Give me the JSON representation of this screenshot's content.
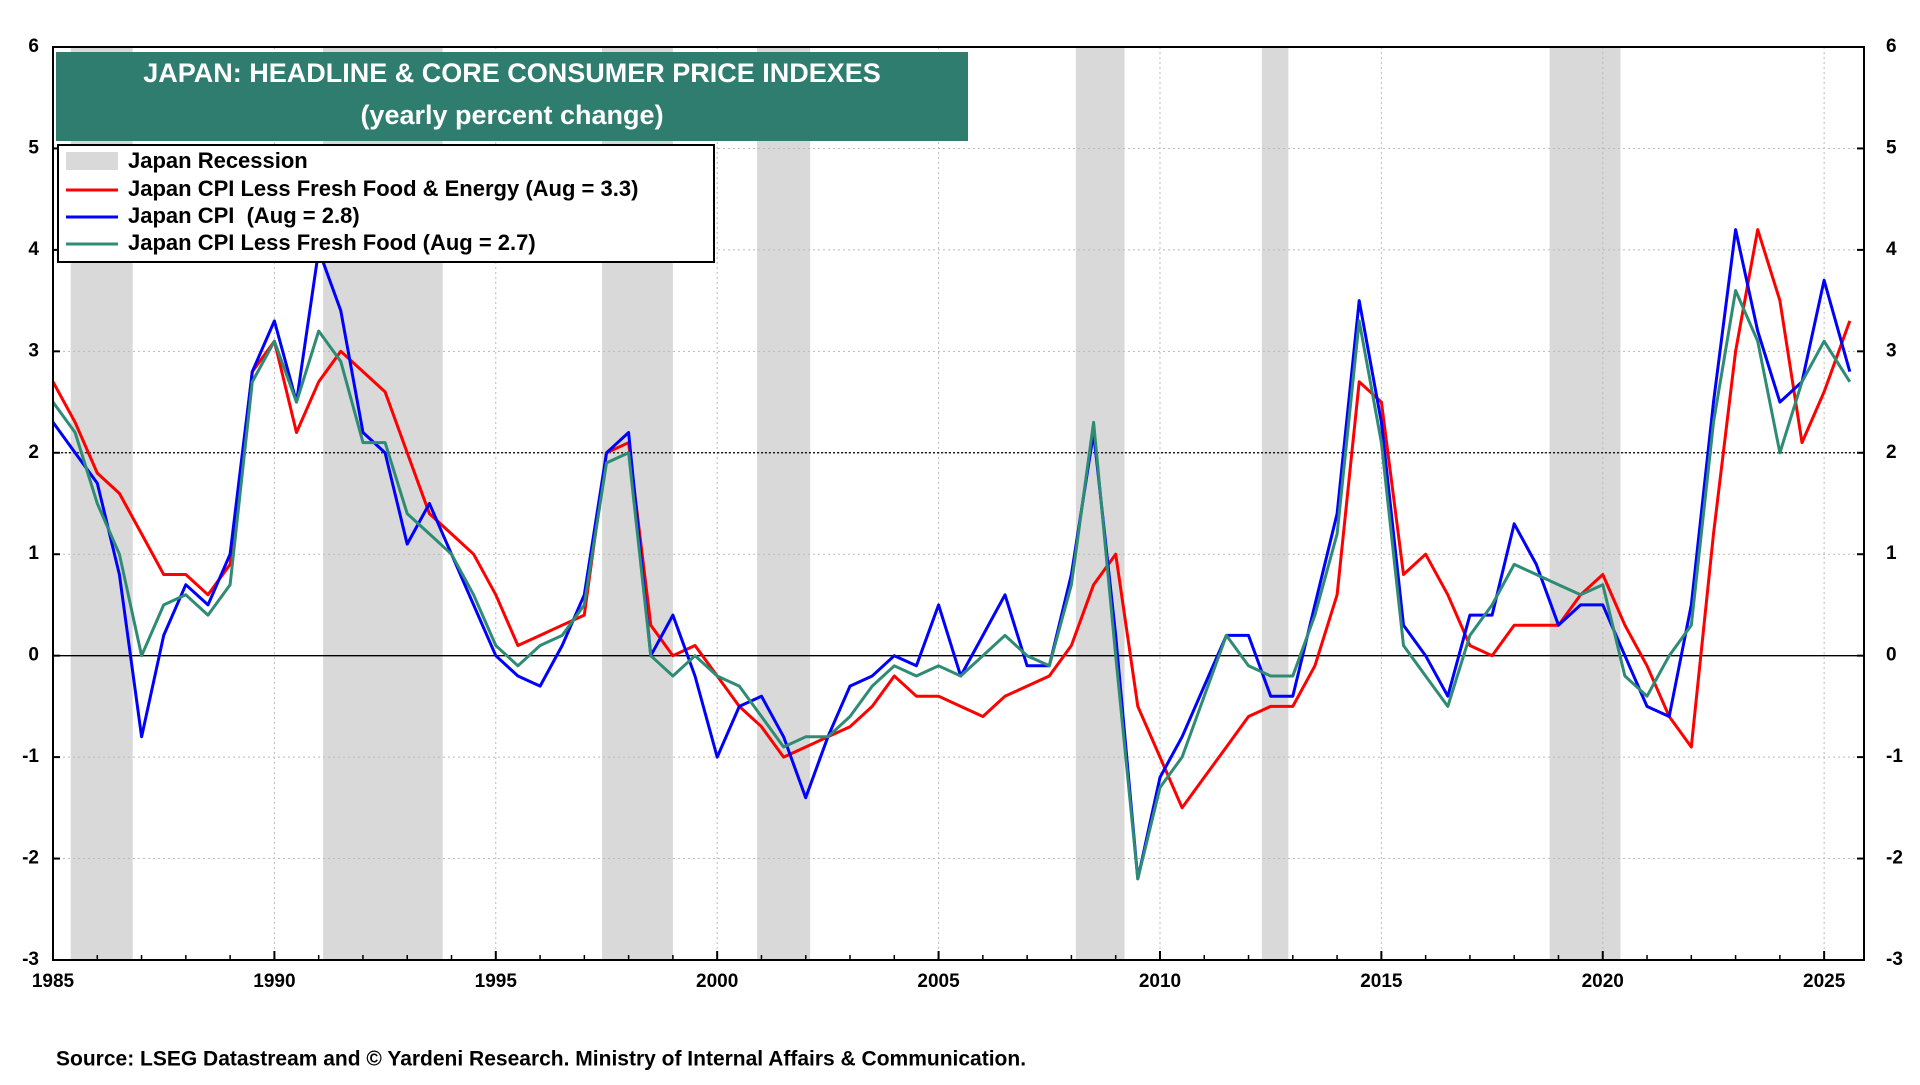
{
  "chart_data": {
    "type": "line",
    "title": "JAPAN: HEADLINE & CORE CONSUMER PRICE INDEXES",
    "subtitle": "(yearly percent change)",
    "source": "Source: LSEG Datastream and © Yardeni Research. Ministry of Internal Affairs & Communication.",
    "xlim": [
      1985,
      2025.9
    ],
    "xticks": [
      1985,
      1990,
      1995,
      2000,
      2005,
      2010,
      2015,
      2020,
      2025
    ],
    "ylim": [
      -3,
      6
    ],
    "yticks": [
      -3,
      -2,
      -1,
      0,
      1,
      2,
      3,
      4,
      5,
      6
    ],
    "y2lim": [
      -3,
      6
    ],
    "y2ticks": [
      -3,
      -2,
      -1,
      0,
      1,
      2,
      3,
      4,
      5,
      6
    ],
    "grid": true,
    "hlines": [
      0,
      2
    ],
    "recessions": {
      "name": "Japan Recession",
      "color": "#d9d9d9",
      "periods": [
        [
          1985.4,
          1986.8
        ],
        [
          1991.1,
          1993.8
        ],
        [
          1997.4,
          1999.0
        ],
        [
          2000.9,
          2002.1
        ],
        [
          2008.1,
          2009.2
        ],
        [
          2012.3,
          2012.9
        ],
        [
          2018.8,
          2020.4
        ]
      ]
    },
    "x": [
      1985.0,
      1985.5,
      1986.0,
      1986.5,
      1987.0,
      1987.5,
      1988.0,
      1988.5,
      1989.0,
      1989.5,
      1990.0,
      1990.5,
      1991.0,
      1991.5,
      1992.0,
      1992.5,
      1993.0,
      1993.5,
      1994.0,
      1994.5,
      1995.0,
      1995.5,
      1996.0,
      1996.5,
      1997.0,
      1997.5,
      1998.0,
      1998.5,
      1999.0,
      1999.5,
      2000.0,
      2000.5,
      2001.0,
      2001.5,
      2002.0,
      2002.5,
      2003.0,
      2003.5,
      2004.0,
      2004.5,
      2005.0,
      2005.5,
      2006.0,
      2006.5,
      2007.0,
      2007.5,
      2008.0,
      2008.5,
      2009.0,
      2009.5,
      2010.0,
      2010.5,
      2011.0,
      2011.5,
      2012.0,
      2012.5,
      2013.0,
      2013.5,
      2014.0,
      2014.5,
      2015.0,
      2015.5,
      2016.0,
      2016.5,
      2017.0,
      2017.5,
      2018.0,
      2018.5,
      2019.0,
      2019.5,
      2020.0,
      2020.5,
      2021.0,
      2021.5,
      2022.0,
      2022.5,
      2023.0,
      2023.5,
      2024.0,
      2024.5,
      2025.0,
      2025.58
    ],
    "series": [
      {
        "name": "Japan CPI Less Fresh Food & Energy (Aug = 3.3)",
        "color": "#ff0000",
        "values": [
          2.7,
          2.3,
          1.8,
          1.6,
          1.2,
          0.8,
          0.8,
          0.6,
          0.9,
          2.8,
          3.1,
          2.2,
          2.7,
          3.0,
          2.8,
          2.6,
          2.0,
          1.4,
          1.2,
          1.0,
          0.6,
          0.1,
          0.2,
          0.3,
          0.4,
          2.0,
          2.1,
          0.3,
          0.0,
          0.1,
          -0.2,
          -0.5,
          -0.7,
          -1.0,
          -0.9,
          -0.8,
          -0.7,
          -0.5,
          -0.2,
          -0.4,
          -0.4,
          -0.5,
          -0.6,
          -0.4,
          -0.3,
          -0.2,
          0.1,
          0.7,
          1.0,
          -0.5,
          -1.0,
          -1.5,
          -1.2,
          -0.9,
          -0.6,
          -0.5,
          -0.5,
          -0.1,
          0.6,
          2.7,
          2.5,
          0.8,
          1.0,
          0.6,
          0.1,
          0.0,
          0.3,
          0.3,
          0.3,
          0.6,
          0.8,
          0.3,
          -0.1,
          -0.6,
          -0.9,
          1.2,
          3.0,
          4.2,
          3.5,
          2.1,
          2.6,
          3.3
        ]
      },
      {
        "name": "Japan CPI  (Aug = 2.8)",
        "color": "#0000ff",
        "values": [
          2.3,
          2.0,
          1.7,
          0.8,
          -0.8,
          0.2,
          0.7,
          0.5,
          1.0,
          2.8,
          3.3,
          2.5,
          4.0,
          3.4,
          2.2,
          2.0,
          1.1,
          1.5,
          1.0,
          0.5,
          0.0,
          -0.2,
          -0.3,
          0.1,
          0.6,
          2.0,
          2.2,
          0.0,
          0.4,
          -0.2,
          -1.0,
          -0.5,
          -0.4,
          -0.8,
          -1.4,
          -0.8,
          -0.3,
          -0.2,
          0.0,
          -0.1,
          0.5,
          -0.2,
          0.2,
          0.6,
          -0.1,
          -0.1,
          0.8,
          2.2,
          0.2,
          -2.2,
          -1.2,
          -0.8,
          -0.3,
          0.2,
          0.2,
          -0.4,
          -0.4,
          0.5,
          1.4,
          3.5,
          2.3,
          0.3,
          0.0,
          -0.4,
          0.4,
          0.4,
          1.3,
          0.9,
          0.3,
          0.5,
          0.5,
          0.0,
          -0.5,
          -0.6,
          0.5,
          2.5,
          4.2,
          3.2,
          2.5,
          2.7,
          3.7,
          2.8
        ]
      },
      {
        "name": "Japan CPI Less Fresh Food (Aug = 2.7)",
        "color": "#2e8b74",
        "values": [
          2.5,
          2.2,
          1.5,
          1.0,
          0.0,
          0.5,
          0.6,
          0.4,
          0.7,
          2.7,
          3.1,
          2.5,
          3.2,
          2.9,
          2.1,
          2.1,
          1.4,
          1.2,
          1.0,
          0.6,
          0.1,
          -0.1,
          0.1,
          0.2,
          0.5,
          1.9,
          2.0,
          0.0,
          -0.2,
          0.0,
          -0.2,
          -0.3,
          -0.6,
          -0.9,
          -0.8,
          -0.8,
          -0.6,
          -0.3,
          -0.1,
          -0.2,
          -0.1,
          -0.2,
          0.0,
          0.2,
          0.0,
          -0.1,
          0.7,
          2.3,
          0.0,
          -2.2,
          -1.3,
          -1.0,
          -0.4,
          0.2,
          -0.1,
          -0.2,
          -0.2,
          0.4,
          1.2,
          3.3,
          2.1,
          0.1,
          -0.2,
          -0.5,
          0.2,
          0.5,
          0.9,
          0.8,
          0.7,
          0.6,
          0.7,
          -0.2,
          -0.4,
          0.0,
          0.3,
          2.3,
          3.6,
          3.1,
          2.0,
          2.7,
          3.1,
          2.7
        ]
      }
    ]
  }
}
